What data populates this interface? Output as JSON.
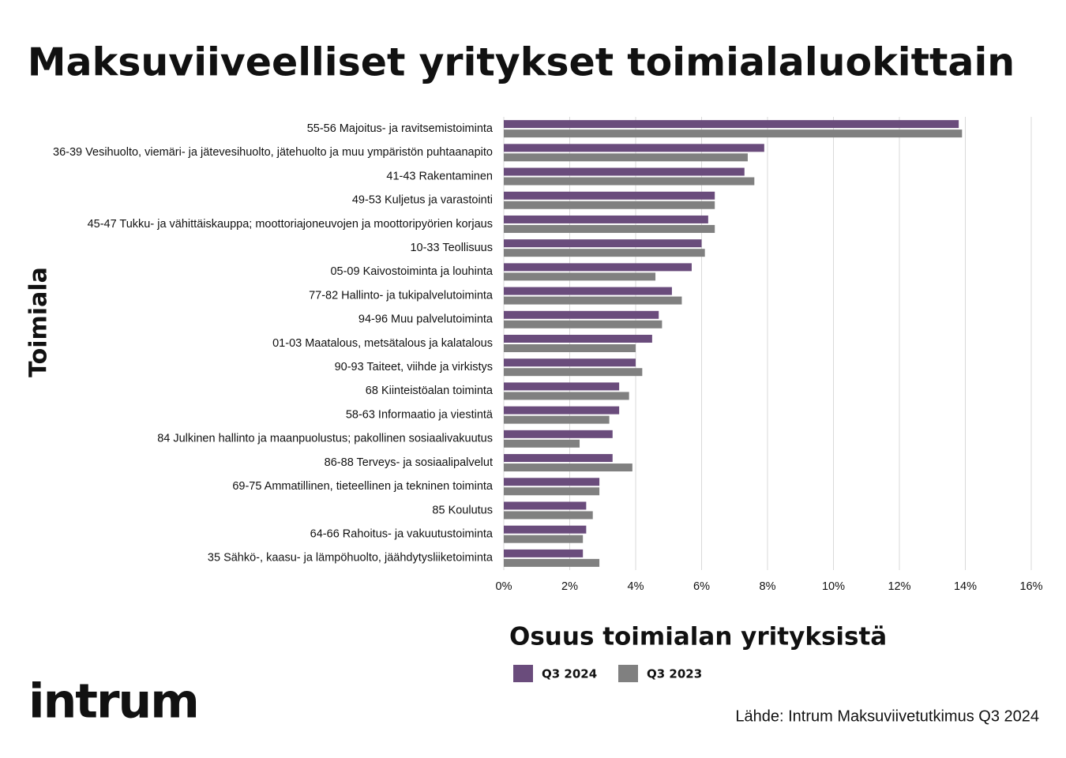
{
  "chart_data": {
    "type": "barh",
    "title": "Maksuviiveelliset yritykset toimialaluokittain",
    "ylabel": "Toimiala",
    "xlabel": "Osuus toimialan yrityksistä",
    "categories": [
      "55-56 Majoitus- ja ravitsemistoiminta",
      "36-39 Vesihuolto, viemäri- ja jätevesihuolto, jätehuolto ja muu ympäristön puhtaanapito",
      "41-43 Rakentaminen",
      "49-53 Kuljetus ja varastointi",
      "45-47 Tukku- ja vähittäiskauppa; moottoriajoneuvojen ja moottoripyörien korjaus",
      "10-33 Teollisuus",
      "05-09 Kaivostoiminta ja louhinta",
      "77-82 Hallinto- ja tukipalvelutoiminta",
      "94-96 Muu palvelutoiminta",
      "01-03 Maatalous, metsätalous ja kalatalous",
      "90-93 Taiteet, viihde ja virkistys",
      "68 Kiinteistöalan toiminta",
      "58-63 Informaatio ja viestintä",
      "84 Julkinen hallinto ja maanpuolustus; pakollinen sosiaalivakuutus",
      "86-88 Terveys- ja sosiaalipalvelut",
      "69-75 Ammatillinen, tieteellinen ja tekninen toiminta",
      "85 Koulutus",
      "64-66 Rahoitus- ja vakuutustoiminta",
      "35 Sähkö-, kaasu- ja lämpöhuolto, jäähdytysliiketoiminta"
    ],
    "series": [
      {
        "name": "Q3 2024",
        "color": "#6a4c7c",
        "values": [
          13.8,
          7.9,
          7.3,
          6.4,
          6.2,
          6.0,
          5.7,
          5.1,
          4.7,
          4.5,
          4.0,
          3.5,
          3.5,
          3.3,
          3.3,
          2.9,
          2.5,
          2.5,
          2.4
        ]
      },
      {
        "name": "Q3 2023",
        "color": "#808080",
        "values": [
          13.9,
          7.4,
          7.6,
          6.4,
          6.4,
          6.1,
          4.6,
          5.4,
          4.8,
          4.0,
          4.2,
          3.8,
          3.2,
          2.3,
          3.9,
          2.9,
          2.7,
          2.4,
          2.9
        ]
      }
    ],
    "xlim": [
      0,
      16
    ],
    "xticks": [
      {
        "value": 0,
        "label": "0%"
      },
      {
        "value": 2,
        "label": "2%"
      },
      {
        "value": 4,
        "label": "4%"
      },
      {
        "value": 6,
        "label": "6%"
      },
      {
        "value": 8,
        "label": "8%"
      },
      {
        "value": 10,
        "label": "10%"
      },
      {
        "value": 12,
        "label": "12%"
      },
      {
        "value": 14,
        "label": "14%"
      },
      {
        "value": 16,
        "label": "16%"
      }
    ],
    "grid": true,
    "logo": "intrum",
    "source": "Lähde: Intrum Maksuviivetutkimus Q3 2024"
  }
}
